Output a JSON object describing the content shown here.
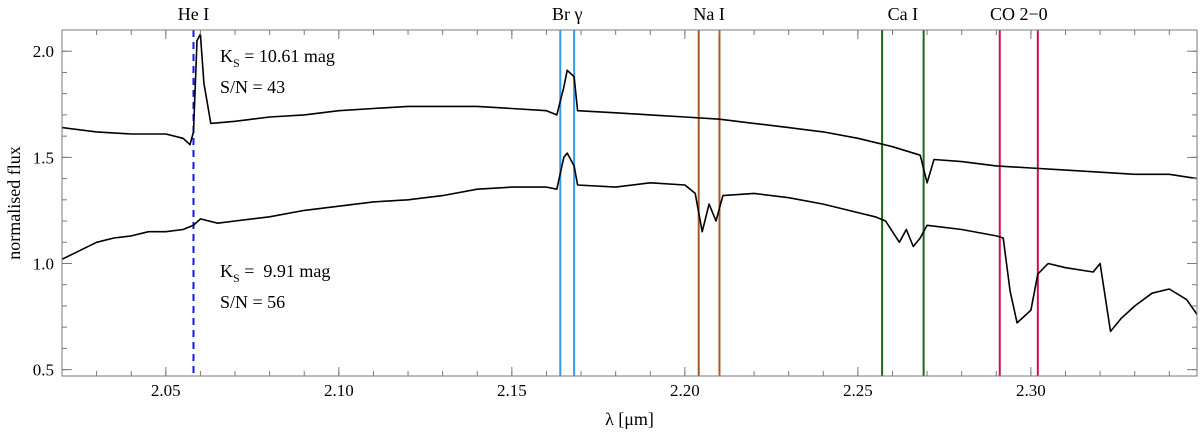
{
  "chart_data": {
    "type": "line",
    "xlabel": "λ [μm]",
    "ylabel": "normalised flux",
    "xlim": [
      2.02,
      2.348
    ],
    "ylim": [
      0.47,
      2.1
    ],
    "grid": false,
    "x_ticks": [
      "2.05",
      "2.10",
      "2.15",
      "2.20",
      "2.25",
      "2.30"
    ],
    "x_tick_values": [
      2.05,
      2.1,
      2.15,
      2.2,
      2.25,
      2.3
    ],
    "y_ticks": [
      "0.5",
      "1.0",
      "1.5",
      "2.0"
    ],
    "y_tick_values": [
      0.5,
      1.0,
      1.5,
      2.0
    ],
    "spectral_lines": [
      {
        "label": "He I",
        "color": "#1515ee",
        "dashed": true,
        "x": [
          2.058
        ]
      },
      {
        "label": "Br γ",
        "color": "#3399ee",
        "dashed": false,
        "x": [
          2.164,
          2.168
        ]
      },
      {
        "label": "Na I",
        "color": "#a65a2a",
        "dashed": false,
        "x": [
          2.204,
          2.21
        ]
      },
      {
        "label": "Ca I",
        "color": "#1a6a1a",
        "dashed": false,
        "x": [
          2.257,
          2.269
        ]
      },
      {
        "label": "CO 2−0",
        "color": "#d0104a",
        "dashed": false,
        "x": [
          2.291,
          2.302
        ]
      }
    ],
    "annotations": [
      {
        "main": "K",
        "sub": "S",
        "rest": " = 10.61 mag",
        "sn": "S/N = 43"
      },
      {
        "main": "K",
        "sub": "S",
        "rest": " =  9.91 mag",
        "sn": "S/N = 56"
      }
    ],
    "series": [
      {
        "color": "#000000",
        "points": [
          [
            2.02,
            1.64
          ],
          [
            2.03,
            1.62
          ],
          [
            2.04,
            1.61
          ],
          [
            2.05,
            1.61
          ],
          [
            2.055,
            1.59
          ],
          [
            2.057,
            1.56
          ],
          [
            2.058,
            1.62
          ],
          [
            2.059,
            2.05
          ],
          [
            2.06,
            2.08
          ],
          [
            2.061,
            1.85
          ],
          [
            2.063,
            1.66
          ],
          [
            2.07,
            1.67
          ],
          [
            2.08,
            1.69
          ],
          [
            2.09,
            1.7
          ],
          [
            2.1,
            1.72
          ],
          [
            2.11,
            1.73
          ],
          [
            2.12,
            1.74
          ],
          [
            2.13,
            1.74
          ],
          [
            2.14,
            1.74
          ],
          [
            2.15,
            1.73
          ],
          [
            2.16,
            1.72
          ],
          [
            2.163,
            1.7
          ],
          [
            2.165,
            1.83
          ],
          [
            2.166,
            1.91
          ],
          [
            2.168,
            1.88
          ],
          [
            2.169,
            1.72
          ],
          [
            2.18,
            1.71
          ],
          [
            2.19,
            1.7
          ],
          [
            2.2,
            1.69
          ],
          [
            2.21,
            1.68
          ],
          [
            2.22,
            1.66
          ],
          [
            2.23,
            1.64
          ],
          [
            2.24,
            1.62
          ],
          [
            2.25,
            1.59
          ],
          [
            2.26,
            1.55
          ],
          [
            2.268,
            1.51
          ],
          [
            2.27,
            1.38
          ],
          [
            2.272,
            1.49
          ],
          [
            2.28,
            1.48
          ],
          [
            2.29,
            1.46
          ],
          [
            2.3,
            1.45
          ],
          [
            2.31,
            1.44
          ],
          [
            2.32,
            1.43
          ],
          [
            2.33,
            1.42
          ],
          [
            2.34,
            1.42
          ],
          [
            2.348,
            1.4
          ]
        ]
      },
      {
        "color": "#000000",
        "points": [
          [
            2.02,
            1.02
          ],
          [
            2.025,
            1.06
          ],
          [
            2.03,
            1.1
          ],
          [
            2.035,
            1.12
          ],
          [
            2.04,
            1.13
          ],
          [
            2.045,
            1.15
          ],
          [
            2.05,
            1.15
          ],
          [
            2.055,
            1.16
          ],
          [
            2.058,
            1.18
          ],
          [
            2.06,
            1.21
          ],
          [
            2.065,
            1.19
          ],
          [
            2.07,
            1.2
          ],
          [
            2.08,
            1.22
          ],
          [
            2.09,
            1.25
          ],
          [
            2.1,
            1.27
          ],
          [
            2.11,
            1.29
          ],
          [
            2.12,
            1.3
          ],
          [
            2.13,
            1.32
          ],
          [
            2.14,
            1.35
          ],
          [
            2.15,
            1.36
          ],
          [
            2.16,
            1.36
          ],
          [
            2.163,
            1.35
          ],
          [
            2.165,
            1.5
          ],
          [
            2.166,
            1.52
          ],
          [
            2.168,
            1.46
          ],
          [
            2.169,
            1.37
          ],
          [
            2.18,
            1.36
          ],
          [
            2.19,
            1.38
          ],
          [
            2.2,
            1.37
          ],
          [
            2.203,
            1.33
          ],
          [
            2.205,
            1.15
          ],
          [
            2.207,
            1.28
          ],
          [
            2.209,
            1.2
          ],
          [
            2.211,
            1.32
          ],
          [
            2.22,
            1.33
          ],
          [
            2.23,
            1.31
          ],
          [
            2.24,
            1.28
          ],
          [
            2.25,
            1.24
          ],
          [
            2.255,
            1.22
          ],
          [
            2.258,
            1.2
          ],
          [
            2.26,
            1.15
          ],
          [
            2.262,
            1.1
          ],
          [
            2.264,
            1.16
          ],
          [
            2.266,
            1.08
          ],
          [
            2.268,
            1.12
          ],
          [
            2.27,
            1.18
          ],
          [
            2.28,
            1.16
          ],
          [
            2.29,
            1.13
          ],
          [
            2.292,
            1.12
          ],
          [
            2.294,
            0.87
          ],
          [
            2.296,
            0.72
          ],
          [
            2.3,
            0.78
          ],
          [
            2.302,
            0.95
          ],
          [
            2.305,
            1.0
          ],
          [
            2.31,
            0.98
          ],
          [
            2.318,
            0.96
          ],
          [
            2.32,
            1.0
          ],
          [
            2.323,
            0.68
          ],
          [
            2.326,
            0.74
          ],
          [
            2.33,
            0.8
          ],
          [
            2.335,
            0.86
          ],
          [
            2.34,
            0.88
          ],
          [
            2.345,
            0.83
          ],
          [
            2.348,
            0.76
          ]
        ]
      }
    ]
  }
}
